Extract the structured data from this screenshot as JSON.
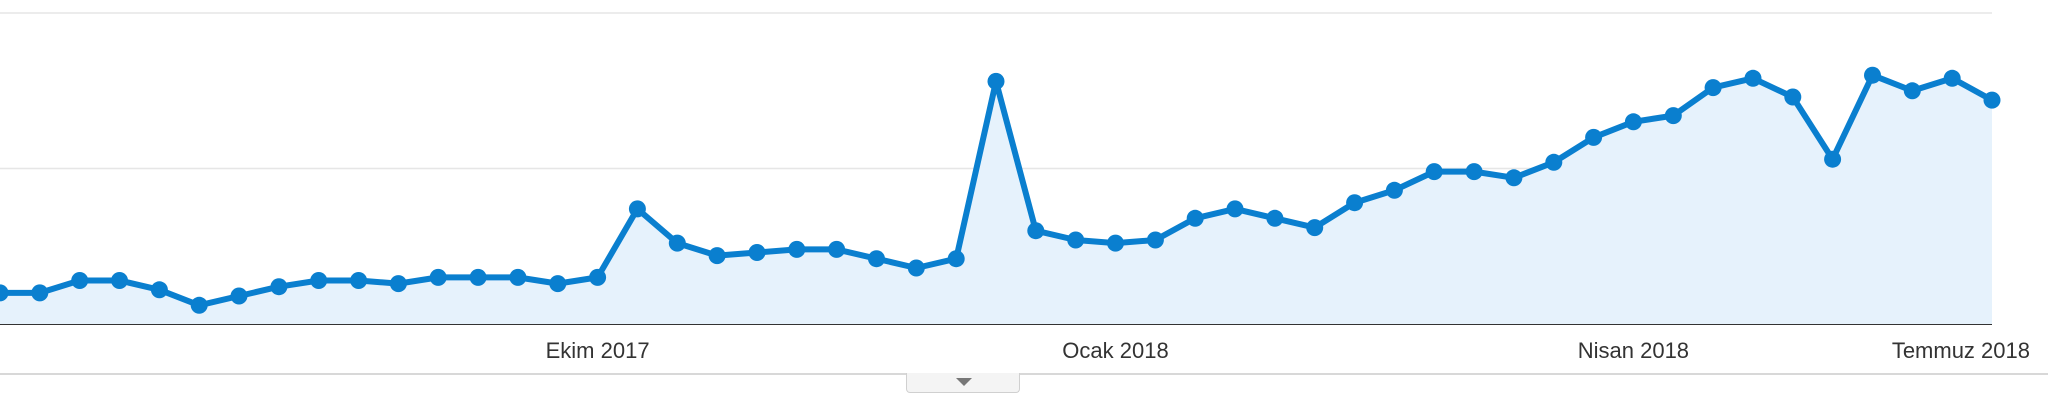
{
  "chart_data": {
    "type": "area",
    "title": "",
    "xlabel": "",
    "ylabel": "",
    "x_tick_labels": [
      "Ekim 2017",
      "Ocak 2018",
      "Nisan 2018",
      "Temmuz 2018"
    ],
    "x_tick_positions": [
      15,
      28,
      41,
      54
    ],
    "ylim": [
      0,
      100
    ],
    "gridlines_y": [
      50,
      100
    ],
    "grid": true,
    "legend": "none",
    "series": [
      {
        "color": "#0a7fcf",
        "fill": "#e6f2fc",
        "values": [
          10,
          10,
          14,
          14,
          11,
          6,
          9,
          12,
          14,
          14,
          13,
          15,
          15,
          15,
          13,
          15,
          37,
          26,
          22,
          23,
          24,
          24,
          21,
          18,
          21,
          78,
          30,
          27,
          26,
          27,
          34,
          37,
          34,
          31,
          39,
          43,
          49,
          49,
          47,
          52,
          60,
          65,
          67,
          76,
          79,
          73,
          53,
          80,
          75,
          79,
          72
        ]
      }
    ]
  },
  "controls": {
    "collapse_icon": "chevron-down-icon"
  }
}
